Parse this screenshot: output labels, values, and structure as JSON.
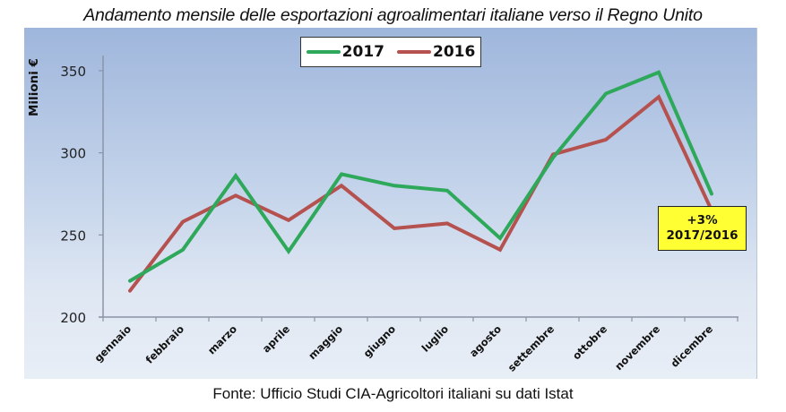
{
  "title": "Andamento mensile delle esportazioni agroalimentari italiane verso il Regno Unito",
  "source": "Fonte: Ufficio Studi CIA-Agricoltori italiani su dati Istat",
  "legend": {
    "items": [
      {
        "label": "2017",
        "color": "#2ea85a"
      },
      {
        "label": "2016",
        "color": "#b5524f"
      }
    ]
  },
  "annotation": {
    "line1": "+3%",
    "line2": "2017/2016",
    "background": "#ffff33"
  },
  "yaxis_label": "Milioni €",
  "chart_data": {
    "type": "line",
    "title": "Andamento mensile delle esportazioni agroalimentari italiane verso il Regno Unito",
    "xlabel": "",
    "ylabel": "Milioni €",
    "ylim": [
      200,
      360
    ],
    "yticks": [
      200,
      250,
      300,
      350
    ],
    "grid": false,
    "legend_position": "top-center",
    "categories": [
      "gennaio",
      "febbraio",
      "marzo",
      "aprile",
      "maggio",
      "giugno",
      "luglio",
      "agosto",
      "settembre",
      "ottobre",
      "novembre",
      "dicembre"
    ],
    "series": [
      {
        "name": "2017",
        "color": "#2ea85a",
        "values": [
          222,
          241,
          286,
          240,
          287,
          280,
          277,
          248,
          297,
          336,
          349,
          275
        ]
      },
      {
        "name": "2016",
        "color": "#b5524f",
        "values": [
          216,
          258,
          274,
          259,
          280,
          254,
          257,
          241,
          299,
          308,
          334,
          265
        ]
      }
    ],
    "annotations": [
      {
        "text": "+3%\n2017/2016",
        "position": "near dicembre"
      }
    ],
    "source": "Fonte: Ufficio Studi CIA-Agricoltori italiani su dati Istat"
  }
}
